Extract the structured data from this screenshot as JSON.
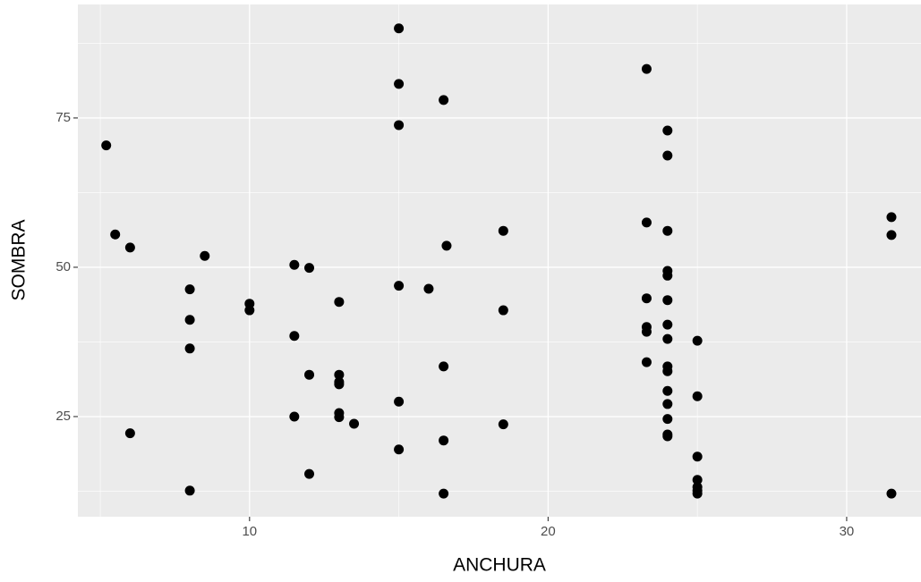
{
  "chart_data": {
    "type": "scatter",
    "x_label": "ANCHURA",
    "y_label": "SOMBRA",
    "color": "#000000",
    "panel_background": "#ebebeb",
    "grid": true,
    "xlim": [
      4.25,
      32.49
    ],
    "ylim": [
      8.23,
      94.0
    ],
    "xticks": [
      10,
      20,
      30
    ],
    "yticks": [
      25,
      50,
      75
    ],
    "x_minor_grid": [
      5,
      15,
      25
    ],
    "y_minor_grid": [
      12.5,
      37.5,
      62.5,
      87.5
    ],
    "x": [
      15,
      15,
      15,
      16.5,
      23.3,
      24,
      24,
      5.2,
      5.5,
      6,
      8.5,
      8,
      8,
      8,
      6,
      8,
      10,
      10,
      11.5,
      12,
      13,
      11.5,
      12,
      13,
      13,
      13,
      11.5,
      13,
      13,
      13.5,
      12,
      15,
      16,
      16.6,
      18.5,
      18.5,
      16.5,
      15,
      18.5,
      16.5,
      15,
      16.5,
      23.3,
      24,
      24,
      24,
      24,
      23.3,
      24,
      23.3,
      23.3,
      24,
      25,
      23.3,
      24,
      24,
      24,
      25,
      24,
      24,
      24,
      24,
      25,
      25,
      25,
      25,
      25,
      31.5,
      31.5,
      31.5
    ],
    "y": [
      90.0,
      80.7,
      73.8,
      78.0,
      83.2,
      72.9,
      68.7,
      70.4,
      55.5,
      53.3,
      51.9,
      46.3,
      41.2,
      36.4,
      22.2,
      12.6,
      43.9,
      42.8,
      50.4,
      49.9,
      44.2,
      38.5,
      32.0,
      32.0,
      30.8,
      30.4,
      25.0,
      25.6,
      24.9,
      23.8,
      15.4,
      46.9,
      46.4,
      53.6,
      56.1,
      42.8,
      33.4,
      27.5,
      23.7,
      21.0,
      19.5,
      12.1,
      57.5,
      56.1,
      49.4,
      48.6,
      44.5,
      44.8,
      40.4,
      40.0,
      39.2,
      38.0,
      37.7,
      34.1,
      33.4,
      32.6,
      29.3,
      28.4,
      27.1,
      24.6,
      22.0,
      21.7,
      18.3,
      14.4,
      13.2,
      12.6,
      12.1,
      58.4,
      55.4,
      12.1
    ]
  }
}
